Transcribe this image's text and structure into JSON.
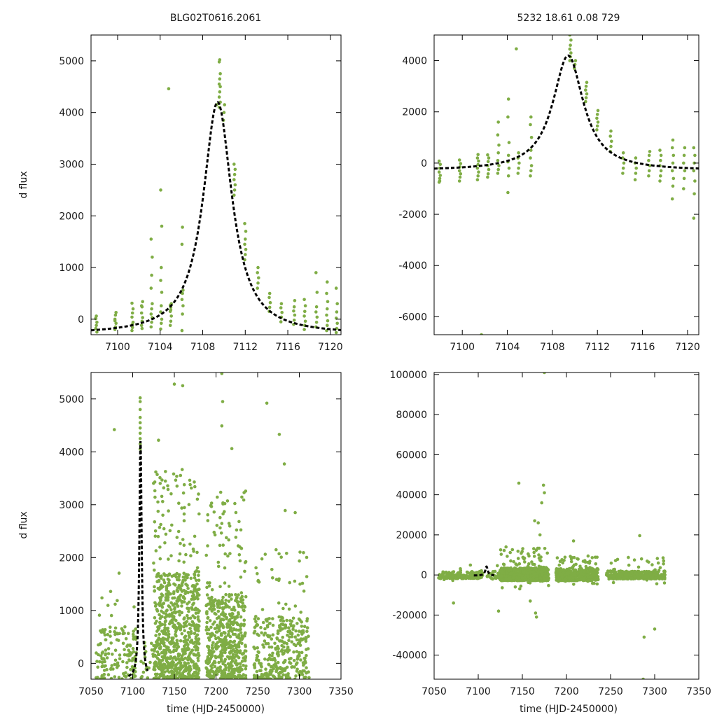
{
  "figure": {
    "header_left": "BLG02T0616.2061",
    "header_right": "5232  18.61  0.08  729",
    "point_color": "#7fad45",
    "fit_color": "#000000"
  },
  "chart_data": [
    {
      "id": "panel-top-left",
      "type": "scatter",
      "title": "BLG02T0616.2061",
      "xlabel": "",
      "ylabel": "d flux",
      "xlim": [
        7097.5,
        7121
      ],
      "ylim": [
        -300,
        5500
      ],
      "xticks": [
        7100,
        7104,
        7108,
        7112,
        7116,
        7120
      ],
      "yticks": [
        0,
        1000,
        2000,
        3000,
        4000,
        5000
      ],
      "fit": {
        "t0": 7109.4,
        "amp": 4500,
        "tE": 1.65,
        "base": -300,
        "xrange": [
          7097.5,
          7121
        ]
      },
      "groups": [
        {
          "x": 7098.0,
          "y": [
            -180,
            -120,
            -60,
            10,
            60,
            -250,
            20
          ]
        },
        {
          "x": 7099.8,
          "y": [
            -200,
            -150,
            -80,
            0,
            80,
            130,
            -30
          ]
        },
        {
          "x": 7101.4,
          "y": [
            -220,
            -160,
            -60,
            40,
            120,
            200,
            310,
            -100
          ]
        },
        {
          "x": 7102.3,
          "y": [
            -120,
            -40,
            30,
            120,
            240,
            340,
            260,
            -180
          ]
        },
        {
          "x": 7103.2,
          "y": [
            -150,
            -60,
            30,
            100,
            200,
            300,
            600,
            850,
            1200,
            1550
          ]
        },
        {
          "x": 7104.1,
          "y": [
            -190,
            -80,
            0,
            140,
            260,
            520,
            750,
            1000,
            1800,
            2500
          ]
        },
        {
          "x": 7105.0,
          "y": [
            -120,
            -40,
            60,
            150,
            230,
            300,
            270,
            180
          ]
        },
        {
          "x": 7106.1,
          "y": [
            -220,
            100,
            260,
            380,
            500,
            560,
            1450,
            1780
          ]
        },
        {
          "x": 7109.6,
          "y": [
            4300,
            4400,
            4500,
            4550,
            4650,
            4750,
            4980,
            5020,
            4200,
            4100
          ]
        },
        {
          "x": 7110.0,
          "y": [
            3850,
            4000,
            4150
          ]
        },
        {
          "x": 7111.0,
          "y": [
            2400,
            2500,
            2600,
            2700,
            2800,
            2900,
            3000
          ]
        },
        {
          "x": 7112.0,
          "y": [
            1150,
            1250,
            1350,
            1450,
            1550,
            1700,
            1850
          ]
        },
        {
          "x": 7113.2,
          "y": [
            600,
            700,
            800,
            900,
            1000
          ]
        },
        {
          "x": 7114.3,
          "y": [
            150,
            230,
            320,
            420,
            500
          ]
        },
        {
          "x": 7115.4,
          "y": [
            -50,
            40,
            130,
            220,
            300
          ]
        },
        {
          "x": 7116.6,
          "y": [
            -100,
            -20,
            80,
            160,
            240,
            360
          ]
        },
        {
          "x": 7117.6,
          "y": [
            -200,
            -120,
            -40,
            60,
            150,
            260,
            380
          ]
        },
        {
          "x": 7118.7,
          "y": [
            -150,
            -60,
            40,
            140,
            240,
            520,
            900
          ]
        },
        {
          "x": 7119.7,
          "y": [
            -220,
            -120,
            -30,
            80,
            200,
            340,
            500,
            720
          ]
        },
        {
          "x": 7120.6,
          "y": [
            -260,
            -180,
            -80,
            20,
            140,
            300,
            600
          ]
        }
      ],
      "extra_points": [
        [
          7104.8,
          4460
        ],
        [
          7109.3,
          4150
        ]
      ]
    },
    {
      "id": "panel-top-right",
      "type": "scatter",
      "title": "5232  18.61  0.08  729",
      "xlabel": "",
      "ylabel": "",
      "xlim": [
        7097.5,
        7121
      ],
      "ylim": [
        -6700,
        5000
      ],
      "xticks": [
        7100,
        7104,
        7108,
        7112,
        7116,
        7120
      ],
      "yticks": [
        -6000,
        -4000,
        -2000,
        0,
        2000,
        4000
      ],
      "fit": {
        "t0": 7109.4,
        "amp": 4500,
        "tE": 1.65,
        "base": -300,
        "xrange": [
          7097.5,
          7121
        ]
      },
      "groups": [
        {
          "x": 7098.0,
          "y": [
            -750,
            -600,
            -480,
            -350,
            -200,
            -50,
            80,
            -700
          ]
        },
        {
          "x": 7099.8,
          "y": [
            -700,
            -550,
            -420,
            -300,
            -150,
            -20,
            120
          ]
        },
        {
          "x": 7101.4,
          "y": [
            -650,
            -500,
            -350,
            -200,
            -60,
            80,
            200,
            330
          ]
        },
        {
          "x": 7102.3,
          "y": [
            -550,
            -420,
            -250,
            -100,
            60,
            200,
            320
          ]
        },
        {
          "x": 7103.2,
          "y": [
            -400,
            -250,
            -100,
            100,
            400,
            700,
            1100,
            1600
          ]
        },
        {
          "x": 7104.1,
          "y": [
            -1150,
            -500,
            -200,
            50,
            300,
            800,
            1800,
            2500
          ]
        },
        {
          "x": 7105.0,
          "y": [
            -400,
            -200,
            0,
            200,
            400
          ]
        },
        {
          "x": 7106.1,
          "y": [
            -500,
            -300,
            -100,
            200,
            500,
            1000,
            1500,
            1800
          ]
        },
        {
          "x": 7109.6,
          "y": [
            4000,
            4150,
            4300,
            4450,
            4600,
            4800,
            5000
          ]
        },
        {
          "x": 7110.0,
          "y": [
            3700,
            3850,
            4000
          ]
        },
        {
          "x": 7111.0,
          "y": [
            2400,
            2550,
            2700,
            2850,
            3000,
            3150
          ]
        },
        {
          "x": 7112.0,
          "y": [
            1300,
            1450,
            1600,
            1750,
            1900,
            2050
          ]
        },
        {
          "x": 7113.2,
          "y": [
            450,
            650,
            850,
            1050,
            1250
          ]
        },
        {
          "x": 7114.3,
          "y": [
            -400,
            -200,
            0,
            200,
            400
          ]
        },
        {
          "x": 7115.4,
          "y": [
            -650,
            -400,
            -200,
            0,
            200
          ]
        },
        {
          "x": 7116.6,
          "y": [
            -500,
            -300,
            -100,
            100,
            300,
            450
          ]
        },
        {
          "x": 7117.6,
          "y": [
            -700,
            -500,
            -300,
            -100,
            100,
            300,
            500
          ]
        },
        {
          "x": 7118.7,
          "y": [
            -1400,
            -900,
            -600,
            -300,
            0,
            300,
            600,
            900
          ]
        },
        {
          "x": 7119.7,
          "y": [
            -1000,
            -600,
            -300,
            0,
            300,
            600
          ]
        },
        {
          "x": 7120.6,
          "y": [
            -2150,
            -1200,
            -700,
            -300,
            0,
            300,
            600
          ]
        }
      ],
      "extra_points": [
        [
          7104.8,
          4460
        ],
        [
          7101.7,
          -6700
        ]
      ]
    },
    {
      "id": "panel-bottom-left",
      "type": "scatter",
      "title": "",
      "xlabel": "time (HJD-2450000)",
      "ylabel": "d flux",
      "xlim": [
        7050,
        7350
      ],
      "ylim": [
        -300,
        5500
      ],
      "xticks": [
        7050,
        7100,
        7150,
        7200,
        7250,
        7300,
        7350
      ],
      "yticks": [
        0,
        1000,
        2000,
        3000,
        4000,
        5000
      ],
      "fit": {
        "t0": 7109.4,
        "amp": 4500,
        "tE": 1.65,
        "base": -300,
        "xrange": [
          7095,
          7118
        ]
      },
      "peak_column": {
        "x": 7109,
        "y": [
          4050,
          4150,
          4250,
          4350,
          4450,
          4550,
          4650,
          4800,
          4950,
          5020
        ]
      },
      "clusters": [
        {
          "x0": 7055,
          "x1": 7105,
          "n": 140,
          "ymin": -300,
          "ymax": 700,
          "extreme_n": 10,
          "extreme_max": 1900
        },
        {
          "x0": 7110,
          "x1": 7125,
          "n": 20,
          "ymin": -300,
          "ymax": 400,
          "extreme_n": 2,
          "extreme_max": 800
        },
        {
          "x0": 7125,
          "x1": 7180,
          "n": 700,
          "ymin": -300,
          "ymax": 1700,
          "extreme_n": 100,
          "extreme_max": 3700
        },
        {
          "x0": 7188,
          "x1": 7236,
          "n": 520,
          "ymin": -300,
          "ymax": 1300,
          "extreme_n": 70,
          "extreme_max": 3300
        },
        {
          "x0": 7245,
          "x1": 7312,
          "n": 320,
          "ymin": -300,
          "ymax": 900,
          "extreme_n": 40,
          "extreme_max": 2200
        }
      ],
      "extra_points": [
        [
          7150,
          5280
        ],
        [
          7160,
          5250
        ],
        [
          7207,
          5480
        ],
        [
          7208,
          4950
        ],
        [
          7261,
          4920
        ],
        [
          7276,
          4330
        ],
        [
          7131,
          4220
        ],
        [
          7078,
          4420
        ],
        [
          7282,
          3770
        ],
        [
          7283,
          2890
        ],
        [
          7295,
          2850
        ],
        [
          7207,
          4490
        ],
        [
          7219,
          4060
        ]
      ]
    },
    {
      "id": "panel-bottom-right",
      "type": "scatter",
      "title": "",
      "xlabel": "time (HJD-2450000)",
      "ylabel": "",
      "xlim": [
        7050,
        7350
      ],
      "ylim": [
        -52000,
        101000
      ],
      "xticks": [
        7050,
        7100,
        7150,
        7200,
        7250,
        7300,
        7350
      ],
      "yticks": [
        -40000,
        -20000,
        0,
        20000,
        40000,
        60000,
        80000,
        100000
      ],
      "fit": {
        "t0": 7109.4,
        "amp": 4500,
        "tE": 1.65,
        "base": -300,
        "xrange": [
          7095,
          7118
        ]
      },
      "clusters": [
        {
          "x0": 7055,
          "x1": 7105,
          "n": 160,
          "ymin": -1800,
          "ymax": 1800,
          "extreme_n": 6,
          "extreme_max": 7000
        },
        {
          "x0": 7110,
          "x1": 7125,
          "n": 30,
          "ymin": -1800,
          "ymax": 1800,
          "extreme_n": 2,
          "extreme_max": 5000
        },
        {
          "x0": 7125,
          "x1": 7180,
          "n": 700,
          "ymin": -2800,
          "ymax": 3500,
          "extreme_n": 60,
          "extreme_max": 14000
        },
        {
          "x0": 7188,
          "x1": 7236,
          "n": 450,
          "ymin": -2800,
          "ymax": 3200,
          "extreme_n": 40,
          "extreme_max": 10000
        },
        {
          "x0": 7245,
          "x1": 7312,
          "n": 320,
          "ymin": -2000,
          "ymax": 2000,
          "extreme_n": 25,
          "extreme_max": 9000
        }
      ],
      "extra_points": [
        [
          7175,
          101000
        ],
        [
          7146,
          45800
        ],
        [
          7174,
          44800
        ],
        [
          7175,
          41000
        ],
        [
          7172,
          36000
        ],
        [
          7164,
          27000
        ],
        [
          7168,
          26000
        ],
        [
          7170,
          20000
        ],
        [
          7166,
          -21000
        ],
        [
          7165,
          -19000
        ],
        [
          7159,
          -13000
        ],
        [
          7283,
          19600
        ],
        [
          7288,
          -31000
        ],
        [
          7300,
          -27000
        ],
        [
          7287,
          -52000
        ],
        [
          7072,
          -14000
        ],
        [
          7123,
          -18000
        ],
        [
          7208,
          17000
        ]
      ]
    }
  ]
}
